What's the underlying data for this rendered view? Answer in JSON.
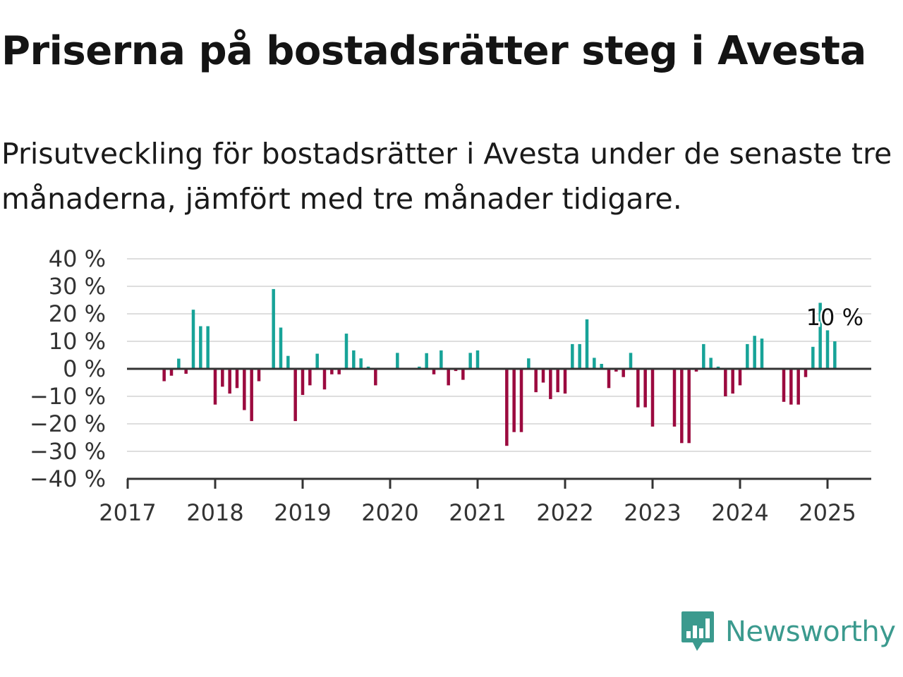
{
  "title": "Priserna på bostadsrätter steg i Avesta",
  "subtitle": "Prisutveckling för bostadsrätter i Avesta under de senaste tre månaderna, jämfört med tre månader tidigare.",
  "logo": {
    "text": "Newsworthy",
    "icon": "bar-chart-speech-bubble-icon",
    "color": "#3b9a8e"
  },
  "colors": {
    "positive": "#17a398",
    "negative": "#9b0a3f",
    "grid": "#dedede",
    "zero_line": "#333333"
  },
  "chart_data": {
    "type": "bar",
    "title": "",
    "xlabel": "",
    "ylabel": "",
    "ylim": [
      -40,
      40
    ],
    "y_ticks": [
      "−40 %",
      "−30 %",
      "−20 %",
      "−10 %",
      "0 %",
      "10 %",
      "20 %",
      "30 %",
      "40 %"
    ],
    "x_ticks": [
      "2017",
      "2018",
      "2019",
      "2020",
      "2021",
      "2022",
      "2023",
      "2024",
      "2025"
    ],
    "x_range": [
      "2017-01",
      "2025-07"
    ],
    "grid": true,
    "bars": [
      {
        "date": "2017-06",
        "value": -4.5
      },
      {
        "date": "2017-07",
        "value": -2.5
      },
      {
        "date": "2017-08",
        "value": 3.7
      },
      {
        "date": "2017-09",
        "value": -1.8
      },
      {
        "date": "2017-10",
        "value": 21.5
      },
      {
        "date": "2017-11",
        "value": 15.5
      },
      {
        "date": "2017-12",
        "value": 15.5
      },
      {
        "date": "2018-01",
        "value": -13.0
      },
      {
        "date": "2018-02",
        "value": -6.5
      },
      {
        "date": "2018-03",
        "value": -9.0
      },
      {
        "date": "2018-04",
        "value": -7.0
      },
      {
        "date": "2018-05",
        "value": -15.0
      },
      {
        "date": "2018-06",
        "value": -19.0
      },
      {
        "date": "2018-07",
        "value": -4.5
      },
      {
        "date": "2018-09",
        "value": 29.0
      },
      {
        "date": "2018-10",
        "value": 15.0
      },
      {
        "date": "2018-11",
        "value": 4.7
      },
      {
        "date": "2018-12",
        "value": -19.0
      },
      {
        "date": "2019-01",
        "value": -9.5
      },
      {
        "date": "2019-02",
        "value": -6.0
      },
      {
        "date": "2019-03",
        "value": 5.5
      },
      {
        "date": "2019-04",
        "value": -7.5
      },
      {
        "date": "2019-05",
        "value": -2.0
      },
      {
        "date": "2019-06",
        "value": -2.0
      },
      {
        "date": "2019-07",
        "value": 12.8
      },
      {
        "date": "2019-08",
        "value": 6.7
      },
      {
        "date": "2019-09",
        "value": 3.8
      },
      {
        "date": "2019-10",
        "value": 0.8
      },
      {
        "date": "2019-11",
        "value": -6.0
      },
      {
        "date": "2020-02",
        "value": 5.8
      },
      {
        "date": "2020-05",
        "value": 0.8
      },
      {
        "date": "2020-06",
        "value": 5.7
      },
      {
        "date": "2020-07",
        "value": -2.0
      },
      {
        "date": "2020-08",
        "value": 6.7
      },
      {
        "date": "2020-09",
        "value": -6.0
      },
      {
        "date": "2020-10",
        "value": -0.8
      },
      {
        "date": "2020-11",
        "value": -4.0
      },
      {
        "date": "2020-12",
        "value": 5.8
      },
      {
        "date": "2021-01",
        "value": 6.7
      },
      {
        "date": "2021-05",
        "value": -28.0
      },
      {
        "date": "2021-06",
        "value": -23.0
      },
      {
        "date": "2021-07",
        "value": -23.0
      },
      {
        "date": "2021-08",
        "value": 3.8
      },
      {
        "date": "2021-09",
        "value": -8.5
      },
      {
        "date": "2021-10",
        "value": -5.0
      },
      {
        "date": "2021-11",
        "value": -11.0
      },
      {
        "date": "2021-12",
        "value": -8.5
      },
      {
        "date": "2022-01",
        "value": -9.0
      },
      {
        "date": "2022-02",
        "value": 9.0
      },
      {
        "date": "2022-03",
        "value": 9.0
      },
      {
        "date": "2022-04",
        "value": 18.0
      },
      {
        "date": "2022-05",
        "value": 4.0
      },
      {
        "date": "2022-06",
        "value": 1.8
      },
      {
        "date": "2022-07",
        "value": -7.0
      },
      {
        "date": "2022-08",
        "value": -1.0
      },
      {
        "date": "2022-09",
        "value": -3.0
      },
      {
        "date": "2022-10",
        "value": 5.8
      },
      {
        "date": "2022-11",
        "value": -14.0
      },
      {
        "date": "2022-12",
        "value": -14.0
      },
      {
        "date": "2023-01",
        "value": -21.0
      },
      {
        "date": "2023-04",
        "value": -21.0
      },
      {
        "date": "2023-05",
        "value": -27.0
      },
      {
        "date": "2023-06",
        "value": -27.0
      },
      {
        "date": "2023-07",
        "value": -1.0
      },
      {
        "date": "2023-08",
        "value": 9.0
      },
      {
        "date": "2023-09",
        "value": 4.0
      },
      {
        "date": "2023-10",
        "value": 0.8
      },
      {
        "date": "2023-11",
        "value": -10.0
      },
      {
        "date": "2023-12",
        "value": -9.0
      },
      {
        "date": "2024-01",
        "value": -6.0
      },
      {
        "date": "2024-02",
        "value": 9.0
      },
      {
        "date": "2024-03",
        "value": 12.0
      },
      {
        "date": "2024-04",
        "value": 11.0
      },
      {
        "date": "2024-07",
        "value": -12.0
      },
      {
        "date": "2024-08",
        "value": -13.0
      },
      {
        "date": "2024-09",
        "value": -13.0
      },
      {
        "date": "2024-10",
        "value": -3.0
      },
      {
        "date": "2024-11",
        "value": 8.0
      },
      {
        "date": "2024-12",
        "value": 24.0
      },
      {
        "date": "2025-01",
        "value": 14.0
      },
      {
        "date": "2025-02",
        "value": 10.0
      }
    ],
    "annotations": [
      {
        "text": "10 %",
        "date": "2025-02",
        "value": 10.0
      }
    ]
  }
}
